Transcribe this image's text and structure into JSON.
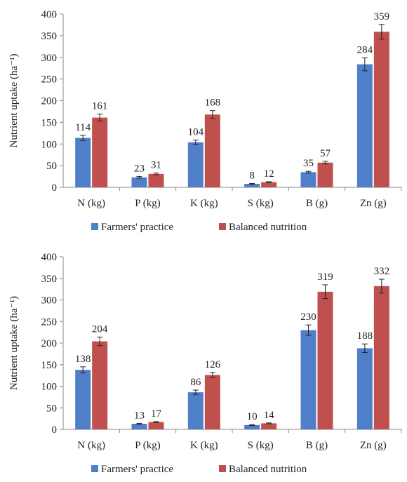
{
  "colors": {
    "farmers": "#4f7fc8",
    "balanced": "#c0504d",
    "axis": "#888888",
    "text": "#222222"
  },
  "chart_data": [
    {
      "type": "bar",
      "ylabel": "Nutrient uptake (ha⁻¹)",
      "ylim": [
        0,
        400
      ],
      "yticks": [
        "0",
        "50",
        "100",
        "150",
        "200",
        "250",
        "300",
        "350",
        "400"
      ],
      "categories": [
        "N (kg)",
        "P (kg)",
        "K (kg)",
        "S (kg)",
        "B (g)",
        "Zn (g)"
      ],
      "series": [
        {
          "name": "Farmers' practice",
          "values": [
            114,
            23,
            104,
            8,
            35,
            284
          ],
          "labels": [
            "114",
            "23",
            "104",
            "8",
            "35",
            "284"
          ],
          "errors": [
            6,
            2,
            5,
            1,
            2,
            15
          ]
        },
        {
          "name": "Balanced nutrition",
          "values": [
            161,
            31,
            168,
            12,
            57,
            359
          ],
          "labels": [
            "161",
            "31",
            "168",
            "12",
            "57",
            "359"
          ],
          "errors": [
            8,
            2,
            9,
            1,
            3,
            17
          ]
        }
      ],
      "legend": "bottom",
      "error_bars": true
    },
    {
      "type": "bar",
      "ylabel": "Nutrient uptake (ha⁻¹)",
      "ylim": [
        0,
        400
      ],
      "yticks": [
        "0",
        "50",
        "100",
        "150",
        "200",
        "250",
        "300",
        "350",
        "400"
      ],
      "categories": [
        "N (kg)",
        "P (kg)",
        "K (kg)",
        "S (kg)",
        "B (g)",
        "Zn (g)"
      ],
      "series": [
        {
          "name": "Farmers' practice",
          "values": [
            138,
            13,
            86,
            10,
            230,
            188
          ],
          "labels": [
            "138",
            "13",
            "86",
            "10",
            "230",
            "188"
          ],
          "errors": [
            7,
            1,
            5,
            1,
            12,
            10
          ]
        },
        {
          "name": "Balanced nutrition",
          "values": [
            204,
            17,
            126,
            14,
            319,
            332
          ],
          "labels": [
            "204",
            "17",
            "126",
            "14",
            "319",
            "332"
          ],
          "errors": [
            10,
            1,
            6,
            1,
            16,
            16
          ]
        }
      ],
      "legend": "bottom",
      "error_bars": true
    }
  ]
}
